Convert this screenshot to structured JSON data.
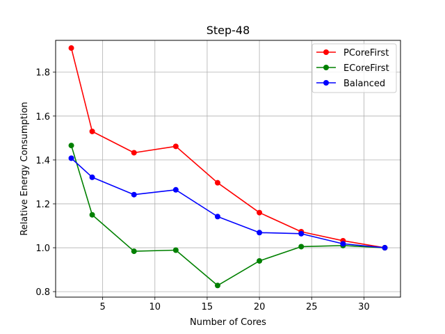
{
  "chart_data": {
    "type": "line",
    "title": "Step-48",
    "xlabel": "Number of Cores",
    "ylabel": "Relative Energy Consumption",
    "xlim": [
      0.5,
      33.5
    ],
    "ylim": [
      0.775,
      1.945
    ],
    "xticks": [
      5,
      10,
      15,
      20,
      25,
      30
    ],
    "yticks": [
      0.8,
      1.0,
      1.2,
      1.4,
      1.6,
      1.8
    ],
    "grid": true,
    "legend_position": "top-right",
    "x": [
      2,
      4,
      8,
      12,
      16,
      20,
      24,
      28,
      32
    ],
    "series": [
      {
        "name": "PCoreFirst",
        "color": "#ff0000",
        "values": [
          1.91,
          1.53,
          1.433,
          1.462,
          1.296,
          1.16,
          1.073,
          1.032,
          1.0
        ]
      },
      {
        "name": "ECoreFirst",
        "color": "#008000",
        "values": [
          1.466,
          1.15,
          0.984,
          0.989,
          0.828,
          0.94,
          1.005,
          1.01,
          1.0
        ]
      },
      {
        "name": "Balanced",
        "color": "#0000ff",
        "values": [
          1.408,
          1.321,
          1.242,
          1.264,
          1.142,
          1.069,
          1.064,
          1.018,
          1.0
        ]
      }
    ]
  }
}
